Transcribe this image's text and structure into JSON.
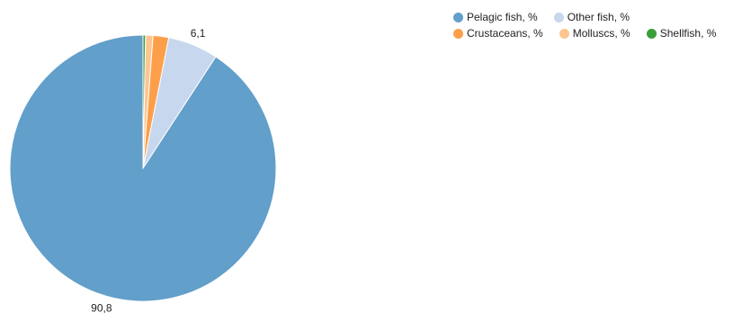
{
  "chart_data": {
    "type": "pie",
    "categories": [
      "Pelagic fish, %",
      "Other fish, %",
      "Crustaceans, %",
      "Molluscs, %",
      "Shellfish, %"
    ],
    "values": [
      90.8,
      6.1,
      1.9,
      0.9,
      0.3
    ],
    "colors": [
      "#629fca",
      "#c7d7ee",
      "#fd9f4a",
      "#fdc58f",
      "#3a9e3a"
    ],
    "data_labels": [
      "90,8",
      "6,1",
      "",
      "",
      ""
    ],
    "legend_position": "top-right"
  }
}
